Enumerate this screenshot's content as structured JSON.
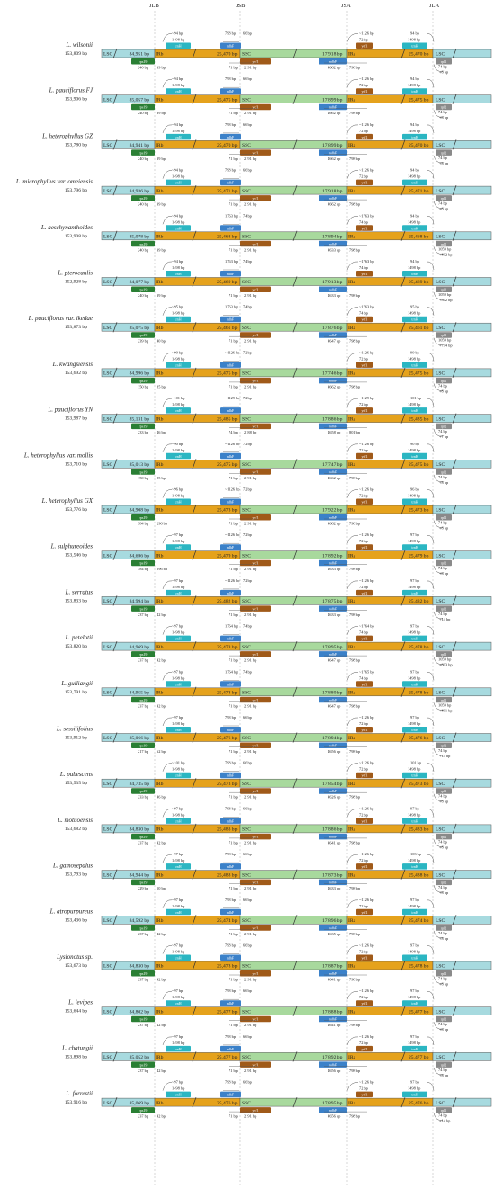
{
  "headers": {
    "jlb": "JLB",
    "jsb": "JSB",
    "jsa": "JSA",
    "jla": "JLA"
  },
  "colors": {
    "lsc": "#a7dadf",
    "irb": "#e5a21c",
    "ssc": "#a8d99d",
    "ira": "#e5a21c",
    "rps19": "#2a7f34",
    "ndhf": "#3b81c9",
    "ycf1": "#a05a19",
    "trnh": "#2bb6c2",
    "rpl2": "#8a8a8a"
  },
  "species": [
    {
      "name": "L. wilsonii",
      "length": "153,809 bp",
      "lsc": "84,951 bp",
      "irb": "25,470 bp",
      "ssc": "17,918 bp",
      "ira": "25,470 bp",
      "a1": "~94 bp",
      "a2": "1498 bp",
      "a3": "798 bp",
      "a4": "66 bp",
      "a5": "~1126 bp",
      "a6": "72 bp",
      "a7": "94 bp",
      "a8": "1498 bp",
      "b1": "240 bp",
      "b2": "39 bp",
      "b3": "71 bp",
      "b4": "2191 bp",
      "b5": "4662 bp",
      "b6": "798 bp",
      "b7": "74 bp",
      "b8": "+8 bp"
    },
    {
      "name": "L. pauciflorus FJ",
      "length": "153,906 bp",
      "lsc": "85,057 bp",
      "irb": "25,475 bp",
      "ssc": "17,899 bp",
      "ira": "25,475 bp",
      "a1": "~94 bp",
      "a2": "1498 bp",
      "a3": "798 bp",
      "a4": "66 bp",
      "a5": "~1126 bp",
      "a6": "72 bp",
      "a7": "94 bp",
      "a8": "1498 bp",
      "b1": "240 bp",
      "b2": "39 bp",
      "b3": "71 bp",
      "b4": "2191 bp",
      "b5": "4662 bp",
      "b6": "798 bp",
      "b7": "74 bp",
      "b8": "+8 bp"
    },
    {
      "name": "L. heterophyllus GZ",
      "length": "153,780 bp",
      "lsc": "84,941 bp",
      "irb": "25,470 bp",
      "ssc": "17,899 bp",
      "ira": "25,470 bp",
      "a1": "~94 bp",
      "a2": "1498 bp",
      "a3": "798 bp",
      "a4": "66 bp",
      "a5": "~1126 bp",
      "a6": "72 bp",
      "a7": "94 bp",
      "a8": "1498 bp",
      "b1": "240 bp",
      "b2": "39 bp",
      "b3": "71 bp",
      "b4": "2191 bp",
      "b5": "4662 bp",
      "b6": "798 bp",
      "b7": "74 bp",
      "b8": "+8 bp"
    },
    {
      "name": "L. microphyllus var. omeiensis",
      "length": "153,796 bp",
      "lsc": "84,936 bp",
      "irb": "25,471 bp",
      "ssc": "17,918 bp",
      "ira": "25,471 bp",
      "a1": "~94 bp",
      "a2": "1498 bp",
      "a3": "798 bp",
      "a4": "66 bp",
      "a5": "~1126 bp",
      "a6": "72 bp",
      "a7": "94 bp",
      "a8": "1498 bp",
      "b1": "240 bp",
      "b2": "39 bp",
      "b3": "71 bp",
      "b4": "2191 bp",
      "b5": "4662 bp",
      "b6": "798 bp",
      "b7": "74 bp",
      "b8": "+8 bp"
    },
    {
      "name": "L. aeschynanthoides",
      "length": "153,908 bp",
      "lsc": "85,078 bp",
      "irb": "25,468 bp",
      "ssc": "17,894 bp",
      "ira": "25,468 bp",
      "a1": "~94 bp",
      "a2": "1498 bp",
      "a3": "1763 bp",
      "a4": "74 bp",
      "a5": "~1763 bp",
      "a6": "74 bp",
      "a7": "94 bp",
      "a8": "1498 bp",
      "b1": "240 bp",
      "b2": "39 bp",
      "b3": "71 bp",
      "b4": "2191 bp",
      "b5": "4633 bp",
      "b6": "798 bp",
      "b7": "1059 bp",
      "b8": "+802 bp"
    },
    {
      "name": "L. pterocaulis",
      "length": "152,928 bp",
      "lsc": "84,077 bp",
      "irb": "25,469 bp",
      "ssc": "17,913 bp",
      "ira": "25,469 bp",
      "a1": "~94 bp",
      "a2": "1498 bp",
      "a3": "1763 bp",
      "a4": "74 bp",
      "a5": "~1763 bp",
      "a6": "74 bp",
      "a7": "94 bp",
      "a8": "1498 bp",
      "b1": "240 bp",
      "b2": "39 bp",
      "b3": "71 bp",
      "b4": "2191 bp",
      "b5": "4633 bp",
      "b6": "798 bp",
      "b7": "1059 bp",
      "b8": "+802 bp"
    },
    {
      "name": "L. pauciflorus var. ikedae",
      "length": "153,873 bp",
      "lsc": "85,075 bp",
      "irb": "25,461 bp",
      "ssc": "17,876 bp",
      "ira": "25,461 bp",
      "a1": "~95 bp",
      "a2": "1498 bp",
      "a3": "1763 bp",
      "a4": "74 bp",
      "a5": "~1763 bp",
      "a6": "74 bp",
      "a7": "95 bp",
      "a8": "1498 bp",
      "b1": "239 bp",
      "b2": "40 bp",
      "b3": "71 bp",
      "b4": "2191 bp",
      "b5": "4647 bp",
      "b6": "798 bp",
      "b7": "1059 bp",
      "b8": "+794 bp"
    },
    {
      "name": "L. kwangsiensis",
      "length": "153,692 bp",
      "lsc": "84,996 bp",
      "irb": "25,475 bp",
      "ssc": "17,746 bp",
      "ira": "25,475 bp",
      "a1": "~90 bp",
      "a2": "1498 bp",
      "a3": "~1126 bp",
      "a4": "72 bp",
      "a5": "~1126 bp",
      "a6": "72 bp",
      "a7": "90 bp",
      "a8": "1498 bp",
      "b1": "150 bp",
      "b2": "85 bp",
      "b3": "71 bp",
      "b4": "2191 bp",
      "b5": "4662 bp",
      "b6": "798 bp",
      "b7": "74 bp",
      "b8": "+8 bp"
    },
    {
      "name": "L. pauciflorus YN",
      "length": "153,987 bp",
      "lsc": "85,131 bp",
      "irb": "25,485 bp",
      "ssc": "17,886 bp",
      "ira": "25,485 bp",
      "a1": "~101 bp",
      "a2": "1498 bp",
      "a3": "~1129 bp",
      "a4": "72 bp",
      "a5": "~1129 bp",
      "a6": "72 bp",
      "a7": "101 bp",
      "a8": "1498 bp",
      "b1": "233 bp",
      "b2": "46 bp",
      "b3": "74 bp",
      "b4": "2188 bp",
      "b5": "4658 bp",
      "b6": "801 bp",
      "b7": "74 bp",
      "b8": "+7 bp"
    },
    {
      "name": "L. heterophyllus var. mollis",
      "length": "153,710 bp",
      "lsc": "85,013 bp",
      "irb": "25,475 bp",
      "ssc": "17,747 bp",
      "ira": "25,475 bp",
      "a1": "~90 bp",
      "a2": "1498 bp",
      "a3": "~1126 bp",
      "a4": "72 bp",
      "a5": "~1126 bp",
      "a6": "72 bp",
      "a7": "90 bp",
      "a8": "1498 bp",
      "b1": "150 bp",
      "b2": "85 bp",
      "b3": "71 bp",
      "b4": "2191 bp",
      "b5": "4662 bp",
      "b6": "798 bp",
      "b7": "74 bp",
      "b8": "+8 bp"
    },
    {
      "name": "L. heterophyllus GX",
      "length": "153,776 bp",
      "lsc": "84,908 bp",
      "irb": "25,473 bp",
      "ssc": "17,922 bp",
      "ira": "25,473 bp",
      "a1": "~96 bp",
      "a2": "1498 bp",
      "a3": "~1126 bp",
      "a4": "72 bp",
      "a5": "~1126 bp",
      "a6": "72 bp",
      "a7": "96 bp",
      "a8": "1498 bp",
      "b1": "384 bp",
      "b2": "296 bp",
      "b3": "71 bp",
      "b4": "2191 bp",
      "b5": "4662 bp",
      "b6": "798 bp",
      "b7": "74 bp",
      "b8": "+8 bp"
    },
    {
      "name": "L. sulphureoides",
      "length": "153,546 bp",
      "lsc": "84,696 bp",
      "irb": "25,479 bp",
      "ssc": "17,892 bp",
      "ira": "25,479 bp",
      "a1": "~97 bp",
      "a2": "1498 bp",
      "a3": "~1126 bp",
      "a4": "72 bp",
      "a5": "~1126 bp",
      "a6": "72 bp",
      "a7": "97 bp",
      "a8": "1498 bp",
      "b1": "384 bp",
      "b2": "296 bp",
      "b3": "71 bp",
      "b4": "2191 bp",
      "b5": "4633 bp",
      "b6": "798 bp",
      "b7": "74 bp",
      "b8": "+8 bp"
    },
    {
      "name": "L. serratus",
      "length": "153,833 bp",
      "lsc": "84,994 bp",
      "irb": "25,482 bp",
      "ssc": "17,875 bp",
      "ira": "25,482 bp",
      "a1": "~97 bp",
      "a2": "1498 bp",
      "a3": "~1126 bp",
      "a4": "72 bp",
      "a5": "~1126 bp",
      "a6": "72 bp",
      "a7": "97 bp",
      "a8": "1498 bp",
      "b1": "237 bp",
      "b2": "42 bp",
      "b3": "71 bp",
      "b4": "2191 bp",
      "b5": "4633 bp",
      "b6": "798 bp",
      "b7": "74 bp",
      "b8": "+14 bp"
    },
    {
      "name": "L. petelotii",
      "length": "153,820 bp",
      "lsc": "84,969 bp",
      "irb": "25,478 bp",
      "ssc": "17,895 bp",
      "ira": "25,478 bp",
      "a1": "~97 bp",
      "a2": "1498 bp",
      "a3": "1764 bp",
      "a4": "74 bp",
      "a5": "~1764 bp",
      "a6": "74 bp",
      "a7": "97 bp",
      "a8": "1498 bp",
      "b1": "237 bp",
      "b2": "42 bp",
      "b3": "71 bp",
      "b4": "2191 bp",
      "b5": "4647 bp",
      "b6": "798 bp",
      "b7": "1059 bp",
      "b8": "+803 bp"
    },
    {
      "name": "L. guiliangii",
      "length": "153,791 bp",
      "lsc": "84,955 bp",
      "irb": "25,478 bp",
      "ssc": "17,880 bp",
      "ira": "25,478 bp",
      "a1": "~97 bp",
      "a2": "1498 bp",
      "a3": "1764 bp",
      "a4": "74 bp",
      "a5": "~1765 bp",
      "a6": "74 bp",
      "a7": "97 bp",
      "a8": "1498 bp",
      "b1": "237 bp",
      "b2": "42 bp",
      "b3": "71 bp",
      "b4": "2191 bp",
      "b5": "4647 bp",
      "b6": "798 bp",
      "b7": "1059 bp",
      "b8": "+801 bp"
    },
    {
      "name": "L. sessilifolius",
      "length": "153,912 bp",
      "lsc": "85,066 bp",
      "irb": "25,476 bp",
      "ssc": "17,894 bp",
      "ira": "25,476 bp",
      "a1": "~97 bp",
      "a2": "1498 bp",
      "a3": "798 bp",
      "a4": "66 bp",
      "a5": "~1126 bp",
      "a6": "72 bp",
      "a7": "97 bp",
      "a8": "1498 bp",
      "b1": "217 bp",
      "b2": "62 bp",
      "b3": "71 bp",
      "b4": "2191 bp",
      "b5": "4656 bp",
      "b6": "798 bp",
      "b7": "74 bp",
      "b8": "+14 bp"
    },
    {
      "name": "L. pubescens",
      "length": "153,535 bp",
      "lsc": "84,735 bp",
      "irb": "25,473 bp",
      "ssc": "17,854 bp",
      "ira": "25,473 bp",
      "a1": "~101 bp",
      "a2": "1498 bp",
      "a3": "798 bp",
      "a4": "66 bp",
      "a5": "~1126 bp",
      "a6": "72 bp",
      "a7": "101 bp",
      "a8": "1498 bp",
      "b1": "233 bp",
      "b2": "46 bp",
      "b3": "71 bp",
      "b4": "2191 bp",
      "b5": "4626 bp",
      "b6": "798 bp",
      "b7": "74 bp",
      "b8": "+8 bp"
    },
    {
      "name": "L. motuoensis",
      "length": "153,682 bp",
      "lsc": "84,830 bp",
      "irb": "25,483 bp",
      "ssc": "17,886 bp",
      "ira": "25,483 bp",
      "a1": "~97 bp",
      "a2": "1498 bp",
      "a3": "798 bp",
      "a4": "66 bp",
      "a5": "~1126 bp",
      "a6": "72 bp",
      "a7": "97 bp",
      "a8": "1498 bp",
      "b1": "237 bp",
      "b2": "42 bp",
      "b3": "71 bp",
      "b4": "2191 bp",
      "b5": "4641 bp",
      "b6": "798 bp",
      "b7": "74 bp",
      "b8": "+8 bp"
    },
    {
      "name": "L. gamosepalus",
      "length": "153,793 bp",
      "lsc": "84,944 bp",
      "irb": "25,488 bp",
      "ssc": "17,873 bp",
      "ira": "25,488 bp",
      "a1": "~97 bp",
      "a2": "1498 bp",
      "a3": "798 bp",
      "a4": "66 bp",
      "a5": "~1126 bp",
      "a6": "72 bp",
      "a7": "103 bp",
      "a8": "1498 bp",
      "b1": "229 bp",
      "b2": "50 bp",
      "b3": "71 bp",
      "b4": "2191 bp",
      "b5": "4633 bp",
      "b6": "798 bp",
      "b7": "74 bp",
      "b8": "+8 bp"
    },
    {
      "name": "L. atropurpureus",
      "length": "153,436 bp",
      "lsc": "84,592 bp",
      "irb": "25,474 bp",
      "ssc": "17,896 bp",
      "ira": "25,474 bp",
      "a1": "~97 bp",
      "a2": "1498 bp",
      "a3": "798 bp",
      "a4": "66 bp",
      "a5": "~1126 bp",
      "a6": "72 bp",
      "a7": "97 bp",
      "a8": "1498 bp",
      "b1": "237 bp",
      "b2": "42 bp",
      "b3": "71 bp",
      "b4": "2191 bp",
      "b5": "4635 bp",
      "b6": "798 bp",
      "b7": "74 bp",
      "b8": "+8 bp"
    },
    {
      "name": "Lysionotus sp.",
      "length": "153,673 bp",
      "lsc": "84,830 bp",
      "irb": "25,478 bp",
      "ssc": "17,887 bp",
      "ira": "25,478 bp",
      "a1": "~97 bp",
      "a2": "1498 bp",
      "a3": "798 bp",
      "a4": "66 bp",
      "a5": "~1126 bp",
      "a6": "72 bp",
      "a7": "97 bp",
      "a8": "1498 bp",
      "b1": "237 bp",
      "b2": "42 bp",
      "b3": "71 bp",
      "b4": "2191 bp",
      "b5": "4641 bp",
      "b6": "798 bp",
      "b7": "74 bp",
      "b8": "+8 bp"
    },
    {
      "name": "L. levipes",
      "length": "153,644 bp",
      "lsc": "84,802 bp",
      "irb": "25,477 bp",
      "ssc": "17,888 bp",
      "ira": "25,477 bp",
      "a1": "~97 bp",
      "a2": "1498 bp",
      "a3": "798 bp",
      "a4": "66 bp",
      "a5": "~1126 bp",
      "a6": "72 bp",
      "a7": "97 bp",
      "a8": "1498 bp",
      "b1": "237 bp",
      "b2": "42 bp",
      "b3": "71 bp",
      "b4": "2191 bp",
      "b5": "4641 bp",
      "b6": "798 bp",
      "b7": "74 bp",
      "b8": "+8 bp"
    },
    {
      "name": "L. chatungii",
      "length": "153,898 bp",
      "lsc": "85,052 bp",
      "irb": "25,477 bp",
      "ssc": "17,892 bp",
      "ira": "25,477 bp",
      "a1": "~97 bp",
      "a2": "1498 bp",
      "a3": "798 bp",
      "a4": "66 bp",
      "a5": "~1126 bp",
      "a6": "72 bp",
      "a7": "97 bp",
      "a8": "1498 bp",
      "b1": "237 bp",
      "b2": "42 bp",
      "b3": "71 bp",
      "b4": "2191 bp",
      "b5": "4656 bp",
      "b6": "798 bp",
      "b7": "74 bp",
      "b8": "+8 bp"
    },
    {
      "name": "L. forrestii",
      "length": "153,916 bp",
      "lsc": "85,069 bp",
      "irb": "25,476 bp",
      "ssc": "17,895 bp",
      "ira": "25,476 bp",
      "a1": "~97 bp",
      "a2": "1498 bp",
      "a3": "798 bp",
      "a4": "66 bp",
      "a5": "~1126 bp",
      "a6": "72 bp",
      "a7": "97 bp",
      "a8": "1498 bp",
      "b1": "237 bp",
      "b2": "42 bp",
      "b3": "71 bp",
      "b4": "2191 bp",
      "b5": "4656 bp",
      "b6": "798 bp",
      "b7": "74 bp",
      "b8": "+14 bp"
    }
  ],
  "labels": {
    "lsc": "LSC",
    "irb": "IRb",
    "ssc": "SSC",
    "ira": "IRa"
  },
  "genes": {
    "rps19": "rps19",
    "rpl2": "rpl2",
    "trnh": "trnH",
    "ndhf": "ndhF",
    "ycf1": "ycf1"
  }
}
